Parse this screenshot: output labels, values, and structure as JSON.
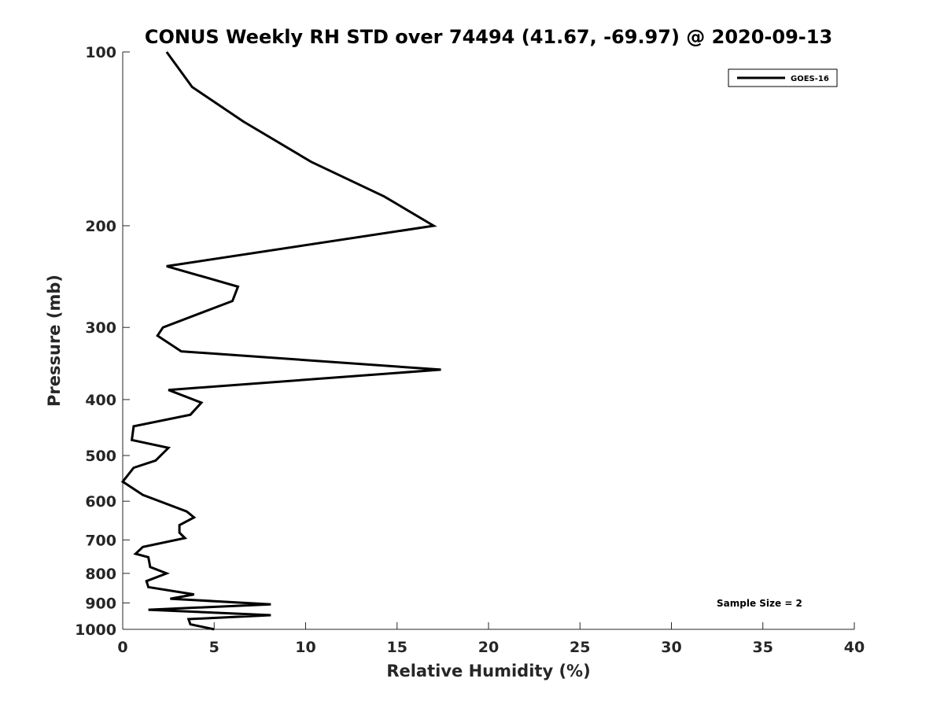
{
  "chart_data": {
    "type": "line",
    "title": "CONUS Weekly RH STD over 74494 (41.67, -69.97) @ 2020-09-13",
    "xlabel": "Relative Humidity (%)",
    "ylabel": "Pressure (mb)",
    "xlim": [
      0,
      40
    ],
    "ylim": [
      1000,
      100
    ],
    "y_scale": "log",
    "y_reversed": true,
    "x_ticks": [
      0,
      5,
      10,
      15,
      20,
      25,
      30,
      35,
      40
    ],
    "y_ticks": [
      100,
      200,
      300,
      400,
      500,
      600,
      700,
      800,
      900,
      1000
    ],
    "grid": false,
    "legend_position": "top-right",
    "series": [
      {
        "name": "GOES-16",
        "color": "#000000",
        "x": [
          2.4,
          3.8,
          6.6,
          10.3,
          14.3,
          17.0,
          2.4,
          6.3,
          6.0,
          2.2,
          1.9,
          3.2,
          17.4,
          2.5,
          4.3,
          3.7,
          0.6,
          0.5,
          2.5,
          1.8,
          0.6,
          0.0,
          1.1,
          3.5,
          3.9,
          3.1,
          3.1,
          3.4,
          1.1,
          0.7,
          1.4,
          1.5,
          2.4,
          1.3,
          1.4,
          3.9,
          2.6,
          8.1,
          1.4,
          8.1,
          3.6,
          3.7,
          5.0
        ],
        "y": [
          100,
          115,
          132,
          155,
          178,
          200,
          235,
          255,
          270,
          300,
          310,
          330,
          355,
          385,
          405,
          425,
          445,
          470,
          485,
          510,
          525,
          555,
          585,
          625,
          640,
          660,
          680,
          695,
          720,
          740,
          750,
          780,
          800,
          825,
          845,
          870,
          885,
          905,
          925,
          945,
          960,
          980,
          1000
        ]
      }
    ],
    "annotation": "Sample Size = 2"
  }
}
